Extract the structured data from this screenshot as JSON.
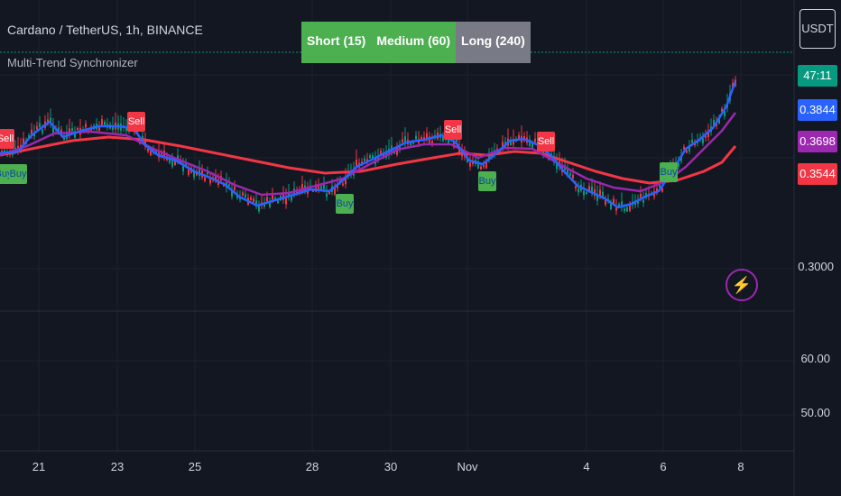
{
  "header": {
    "symbol_title": "Cardano / TetherUS, 1h, BINANCE",
    "indicator_name": "Multi-Trend Synchronizer"
  },
  "trend_panel": {
    "short_label": "Short (15)",
    "medium_label": "Medium (60)",
    "long_label": "Long (240)"
  },
  "price_scale": {
    "currency": "USDT",
    "countdown": "47:11",
    "price_short": "0.3844",
    "price_medium": "0.3698",
    "price_long": "0.3544",
    "level_price": "0.3000",
    "level_60": "60.00",
    "level_50": "50.00"
  },
  "time_axis": {
    "labels": [
      "21",
      "23",
      "25",
      "28",
      "30",
      "Nov",
      "4",
      "6",
      "8"
    ]
  },
  "signals": {
    "sell_label": "Sell",
    "buy_label": "Buy"
  },
  "colors": {
    "background": "#131722",
    "short_ma": "#2962ff",
    "medium_ma": "#9c27b0",
    "long_ma": "#f23645",
    "bull": "#4caf50",
    "neutral": "#787b86",
    "countdown_bg": "#089981"
  },
  "icons": {
    "alert": "bolt-icon"
  }
}
